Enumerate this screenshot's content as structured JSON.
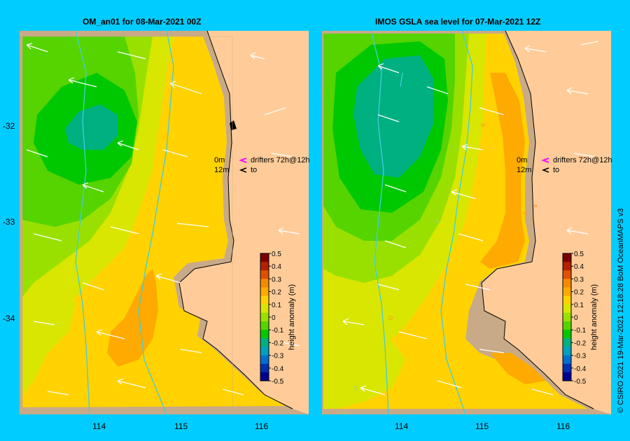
{
  "panels": [
    {
      "title": "OM_an01  for 08-Mar-2021 00Z"
    },
    {
      "title": "IMOS  GSLA sea level   for 07-Mar-2021 12Z"
    }
  ],
  "legend": {
    "drifters_line1_depth": "0m",
    "drifters_line1_text": "drifters 72h@12h",
    "drifters_line2_depth": "12m",
    "drifters_line2_text": "to",
    "colorbar_label": "height anomaly (m)",
    "colorbar_ticks": [
      "0.5",
      "0.4",
      "0.3",
      "0.2",
      "0.1",
      "0",
      "-0.1",
      "-0.2",
      "-0.3",
      "-0.4",
      "-0.5"
    ],
    "colors": [
      "#7a0000",
      "#b52000",
      "#e05000",
      "#f58a00",
      "#ffaa00",
      "#ffd200",
      "#d9e600",
      "#99e000",
      "#55d400",
      "#00c800",
      "#00b080",
      "#00a0c0",
      "#0070d0",
      "#0030b0",
      "#000090"
    ]
  },
  "axes": {
    "lat_ticks": [
      "-32",
      "-33",
      "-34"
    ],
    "lon_ticks": [
      "114",
      "115",
      "116"
    ]
  },
  "credit": "© CSIRO 2021   19-Mar-2021 12:18:28  BoM OceanMAPS v3"
}
